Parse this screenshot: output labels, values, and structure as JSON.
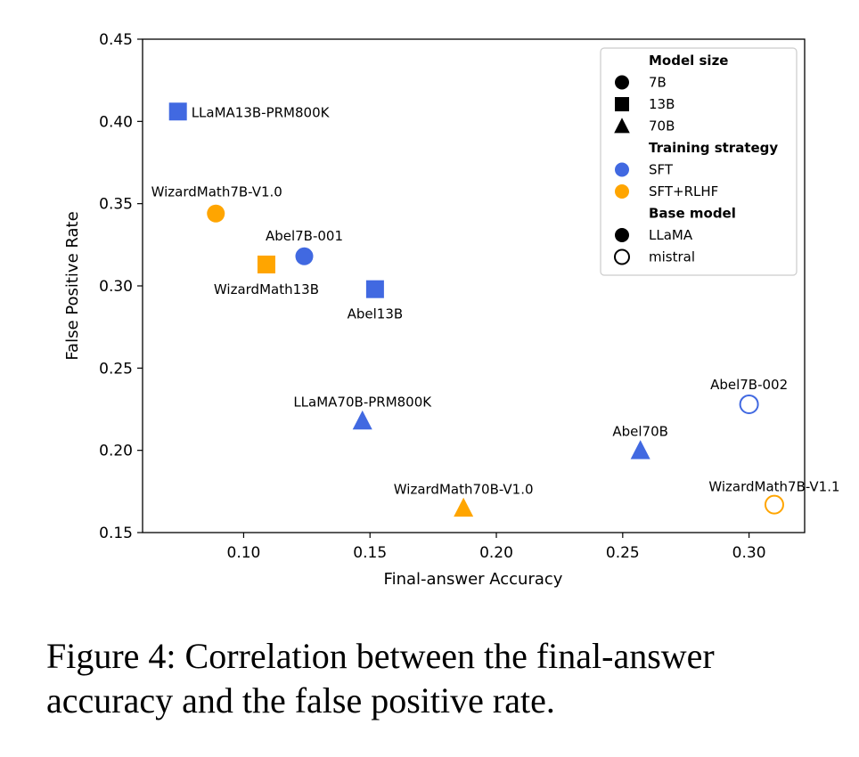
{
  "chart_data": {
    "type": "scatter",
    "xlabel": "Final-answer Accuracy",
    "ylabel": "False Positive Rate",
    "xlim": [
      0.06,
      0.322
    ],
    "ylim": [
      0.15,
      0.45
    ],
    "xticks": [
      0.1,
      0.15,
      0.2,
      0.25,
      0.3
    ],
    "yticks": [
      0.15,
      0.2,
      0.25,
      0.3,
      0.35,
      0.4,
      0.45
    ],
    "grid": false,
    "legend_position": "top-right",
    "colors": {
      "SFT": "#4169e1",
      "SFT+RLHF": "#ffa500"
    },
    "points": [
      {
        "label": "LLaMA13B-PRM800K",
        "x": 0.074,
        "y": 0.406,
        "size": "13B",
        "strategy": "SFT",
        "base": "LLaMA"
      },
      {
        "label": "WizardMath7B-V1.0",
        "x": 0.089,
        "y": 0.344,
        "size": "7B",
        "strategy": "SFT+RLHF",
        "base": "LLaMA"
      },
      {
        "label": "Abel7B-001",
        "x": 0.124,
        "y": 0.318,
        "size": "7B",
        "strategy": "SFT",
        "base": "LLaMA"
      },
      {
        "label": "WizardMath13B",
        "x": 0.109,
        "y": 0.313,
        "size": "13B",
        "strategy": "SFT+RLHF",
        "base": "LLaMA"
      },
      {
        "label": "Abel13B",
        "x": 0.152,
        "y": 0.298,
        "size": "13B",
        "strategy": "SFT",
        "base": "LLaMA"
      },
      {
        "label": "LLaMA70B-PRM800K",
        "x": 0.147,
        "y": 0.218,
        "size": "70B",
        "strategy": "SFT",
        "base": "LLaMA"
      },
      {
        "label": "Abel7B-002",
        "x": 0.3,
        "y": 0.228,
        "size": "7B",
        "strategy": "SFT",
        "base": "mistral"
      },
      {
        "label": "Abel70B",
        "x": 0.257,
        "y": 0.2,
        "size": "70B",
        "strategy": "SFT",
        "base": "LLaMA"
      },
      {
        "label": "WizardMath70B-V1.0",
        "x": 0.187,
        "y": 0.165,
        "size": "70B",
        "strategy": "SFT+RLHF",
        "base": "LLaMA"
      },
      {
        "label": "WizardMath7B-V1.1",
        "x": 0.31,
        "y": 0.167,
        "size": "7B",
        "strategy": "SFT+RLHF",
        "base": "mistral"
      }
    ],
    "legend": [
      {
        "text": "Model size",
        "header": true
      },
      {
        "text": "7B",
        "marker": "circle",
        "fill": "#000000",
        "hollow": false
      },
      {
        "text": "13B",
        "marker": "square",
        "fill": "#000000",
        "hollow": false
      },
      {
        "text": "70B",
        "marker": "triangle",
        "fill": "#000000",
        "hollow": false
      },
      {
        "text": "Training strategy",
        "header": true
      },
      {
        "text": "SFT",
        "marker": "circle",
        "fill": "#4169e1",
        "hollow": false
      },
      {
        "text": "SFT+RLHF",
        "marker": "circle",
        "fill": "#ffa500",
        "hollow": false
      },
      {
        "text": "Base model",
        "header": true
      },
      {
        "text": "LLaMA",
        "marker": "circle",
        "fill": "#000000",
        "hollow": false
      },
      {
        "text": "mistral",
        "marker": "circle",
        "fill": "#000000",
        "hollow": true
      }
    ]
  },
  "caption": "Figure 4: Correlation between the final-answer accuracy and the false positive rate."
}
